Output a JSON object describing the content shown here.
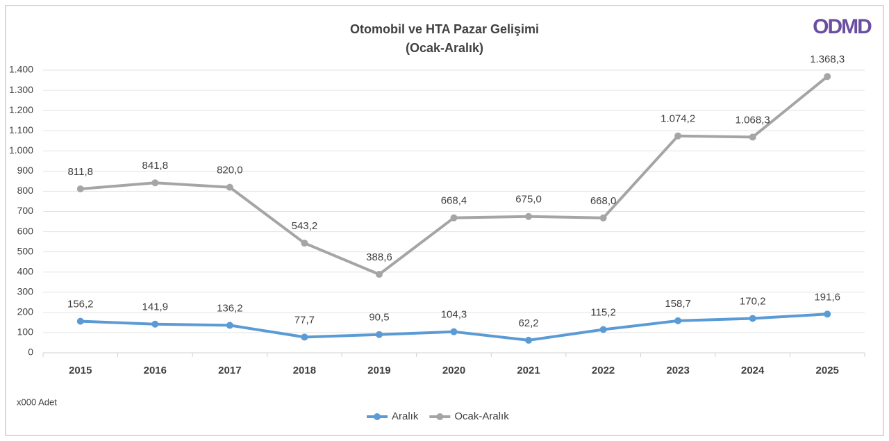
{
  "chart_data": {
    "type": "line",
    "title": "Otomobil ve HTA Pazar Gelişimi",
    "subtitle": "(Ocak-Aralık)",
    "logo": "ODMD",
    "note": "x000 Adet",
    "categories": [
      "2015",
      "2016",
      "2017",
      "2018",
      "2019",
      "2020",
      "2021",
      "2022",
      "2023",
      "2024",
      "2025"
    ],
    "series": [
      {
        "name": "Aralık",
        "color": "#5b9bd5",
        "values": [
          156.2,
          141.9,
          136.2,
          77.7,
          90.5,
          104.3,
          62.2,
          115.2,
          158.7,
          170.2,
          191.6
        ],
        "value_labels": [
          "156,2",
          "141,9",
          "136,2",
          "77,7",
          "90,5",
          "104,3",
          "62,2",
          "115,2",
          "158,7",
          "170,2",
          "191,6"
        ]
      },
      {
        "name": "Ocak-Aralık",
        "color": "#a5a5a5",
        "values": [
          811.8,
          841.8,
          820.0,
          543.2,
          388.6,
          668.4,
          675.0,
          668.0,
          1074.2,
          1068.3,
          1368.3
        ],
        "value_labels": [
          "811,8",
          "841,8",
          "820,0",
          "543,2",
          "388,6",
          "668,4",
          "675,0",
          "668,0",
          "1.074,2",
          "1.068,3",
          "1.368,3"
        ]
      }
    ],
    "ylim": [
      0,
      1400
    ],
    "yticks": [
      0,
      100,
      200,
      300,
      400,
      500,
      600,
      700,
      800,
      900,
      {
        "value": 1000,
        "label": "1.000"
      },
      {
        "value": 1100,
        "label": "1.100"
      },
      {
        "value": 1200,
        "label": "1.200"
      },
      {
        "value": 1300,
        "label": "1.300"
      },
      {
        "value": 1400,
        "label": "1.400"
      }
    ],
    "grid": true,
    "legend": "bottom"
  }
}
